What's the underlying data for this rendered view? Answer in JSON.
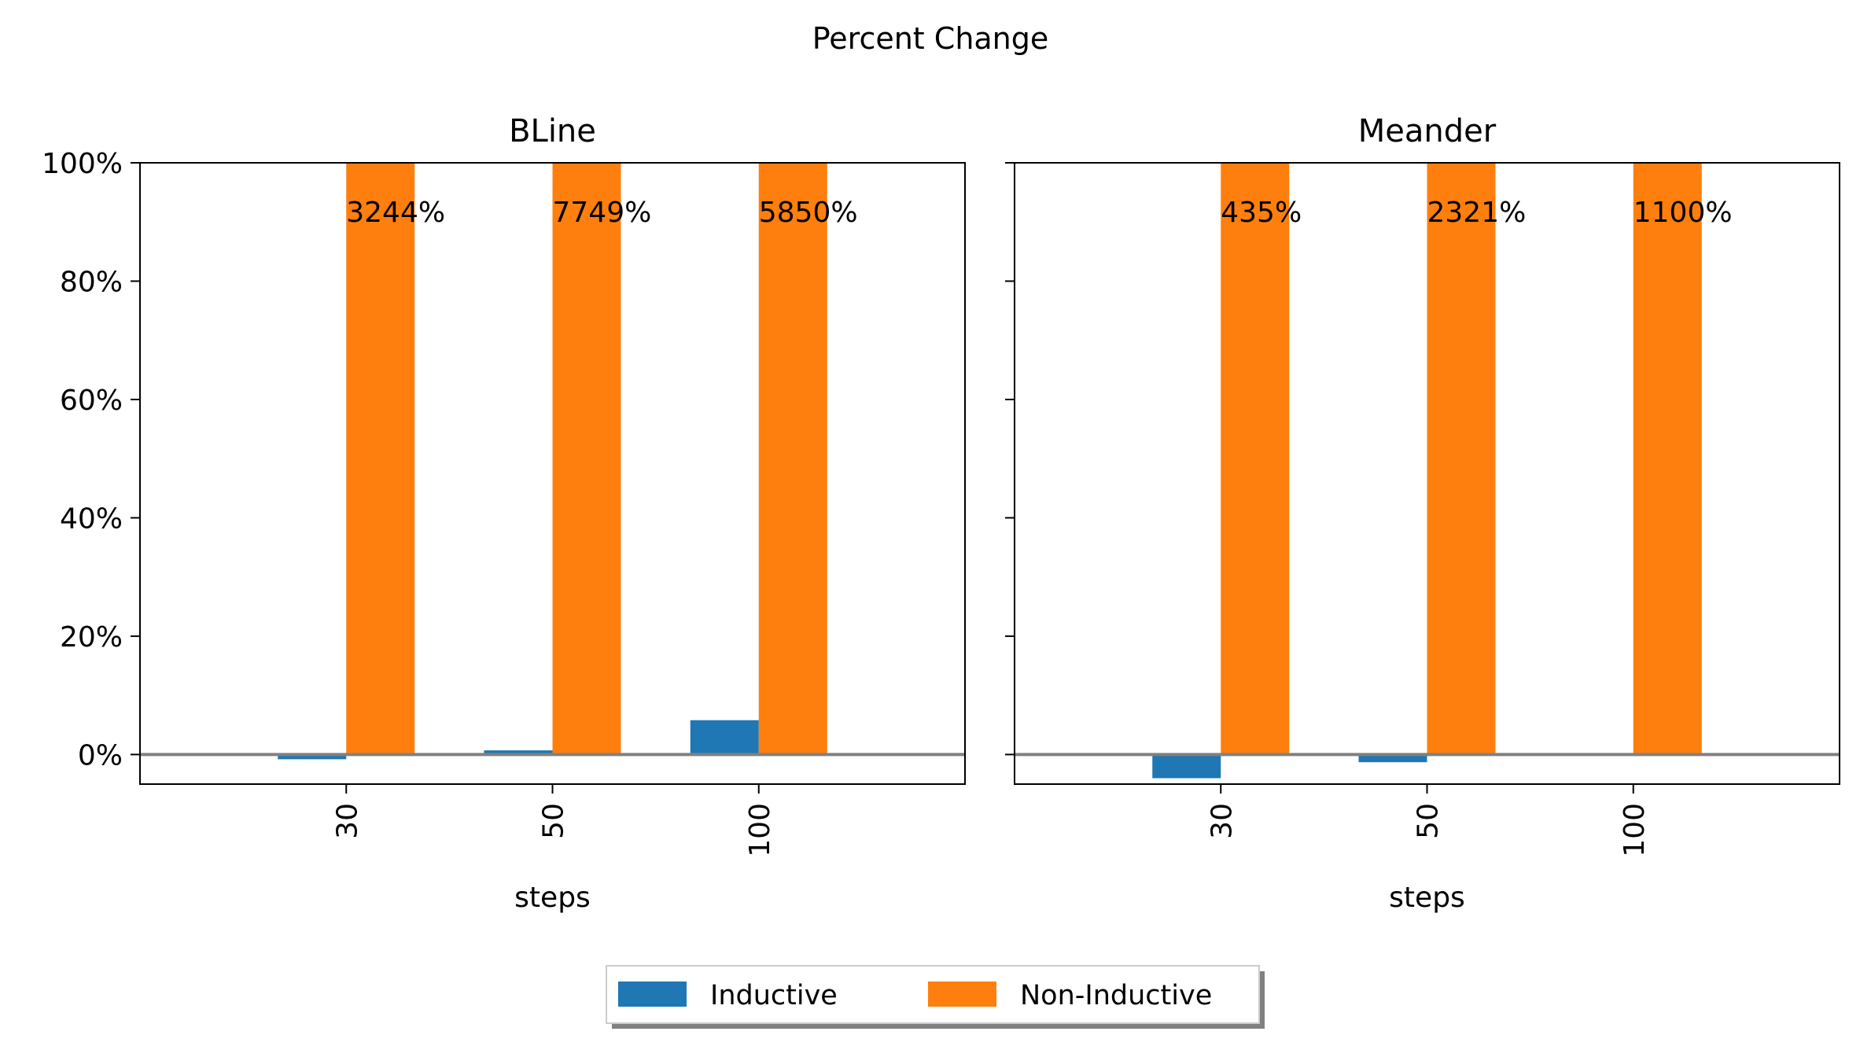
{
  "figure": {
    "suptitle": "Percent Change"
  },
  "legend": {
    "placement": "bottom-center",
    "items": [
      {
        "label": "Inductive",
        "color": "#1f77b4"
      },
      {
        "label": "Non-Inductive",
        "color": "#ff7f0e"
      }
    ]
  },
  "chart_data": [
    {
      "type": "bar",
      "title": "BLine",
      "xlabel": "steps",
      "ylabel": "",
      "categories": [
        "30",
        "50",
        "100"
      ],
      "ylim": [
        -5,
        100
      ],
      "yticks": [
        0,
        20,
        40,
        60,
        80,
        100
      ],
      "ytick_labels": [
        "0%",
        "20%",
        "40%",
        "60%",
        "80%",
        "100%"
      ],
      "show_ytick_labels": true,
      "series": [
        {
          "name": "Inductive",
          "color": "#1f77b4",
          "values": [
            -0.8,
            0.7,
            5.8
          ]
        },
        {
          "name": "Non-Inductive",
          "color": "#ff7f0e",
          "values": [
            3244,
            7749,
            5850
          ]
        }
      ],
      "annotations": [
        "3244%",
        "7749%",
        "5850%"
      ]
    },
    {
      "type": "bar",
      "title": "Meander",
      "xlabel": "steps",
      "ylabel": "",
      "categories": [
        "30",
        "50",
        "100"
      ],
      "ylim": [
        -5,
        100
      ],
      "yticks": [
        0,
        20,
        40,
        60,
        80,
        100
      ],
      "ytick_labels": [
        "0%",
        "20%",
        "40%",
        "60%",
        "80%",
        "100%"
      ],
      "show_ytick_labels": false,
      "series": [
        {
          "name": "Inductive",
          "color": "#1f77b4",
          "values": [
            -4.0,
            -1.3,
            0.0
          ]
        },
        {
          "name": "Non-Inductive",
          "color": "#ff7f0e",
          "values": [
            435,
            2321,
            1100
          ]
        }
      ],
      "annotations": [
        "435%",
        "2321%",
        "1100%"
      ]
    }
  ]
}
